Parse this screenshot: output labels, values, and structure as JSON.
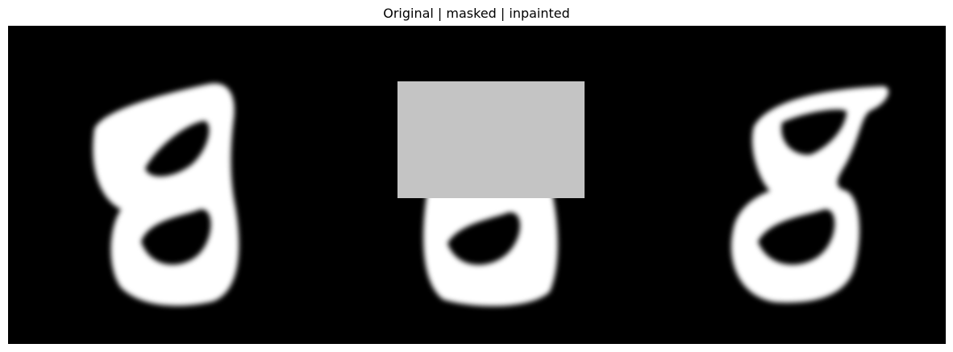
{
  "figure": {
    "title": "Original | masked | inpainted"
  },
  "colors": {
    "background": "#000000",
    "stroke": "#ffffff",
    "mask": "#c4c4c4",
    "page": "#ffffff"
  },
  "panels": [
    {
      "id": "original",
      "content": "handwritten digit 8"
    },
    {
      "id": "masked",
      "content": "handwritten digit 8 with upper region covered by grey mask"
    },
    {
      "id": "inpainted",
      "content": "handwritten digit 8 with reconstructed upper loop"
    }
  ]
}
